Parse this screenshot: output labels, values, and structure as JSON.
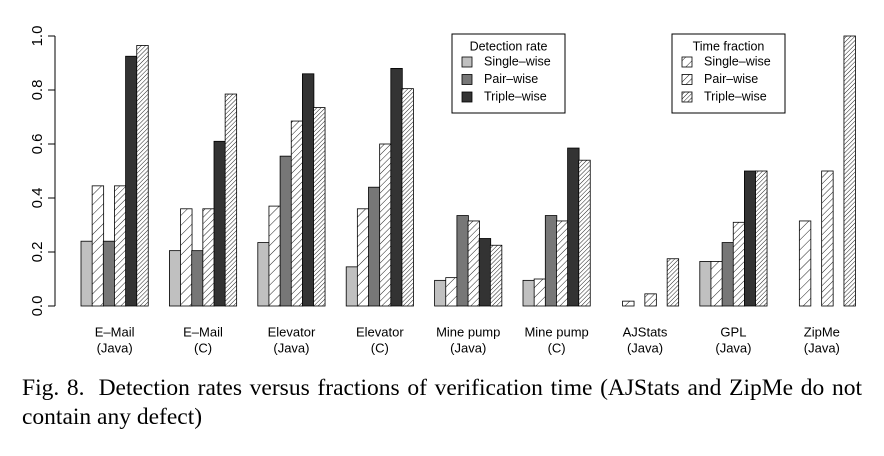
{
  "colors": {
    "single_wise": "#c0c0c0",
    "pair_wise": "#777777",
    "triple_wise": "#333333",
    "hatch_bg": "#ffffff",
    "hatch_line": "#222222",
    "axis": "#000000"
  },
  "chart_data": {
    "type": "bar",
    "categories": [
      [
        "E–Mail",
        "(Java)"
      ],
      [
        "E–Mail",
        "(C)"
      ],
      [
        "Elevator",
        "(Java)"
      ],
      [
        "Elevator",
        "(C)"
      ],
      [
        "Mine pump",
        "(Java)"
      ],
      [
        "Mine pump",
        "(C)"
      ],
      [
        "AJStats",
        "(Java)"
      ],
      [
        "GPL",
        "(Java)"
      ],
      [
        "ZipMe",
        "(Java)"
      ]
    ],
    "bar_order": [
      "detection_single",
      "time_single",
      "detection_pair",
      "time_pair",
      "detection_triple",
      "time_triple"
    ],
    "series": [
      {
        "key": "detection_single",
        "name": "Single–wise",
        "group": "Detection rate",
        "style": "solid",
        "values": [
          0.24,
          0.205,
          0.235,
          0.145,
          0.095,
          0.095,
          0.0,
          0.165,
          0.0
        ]
      },
      {
        "key": "time_single",
        "name": "Single–wise",
        "group": "Time fraction",
        "style": "hatch-sparse",
        "values": [
          0.445,
          0.36,
          0.37,
          0.36,
          0.105,
          0.1,
          0.018,
          0.165,
          0.315
        ]
      },
      {
        "key": "detection_pair",
        "name": "Pair–wise",
        "group": "Detection rate",
        "style": "solid",
        "values": [
          0.24,
          0.205,
          0.555,
          0.44,
          0.335,
          0.335,
          0.0,
          0.235,
          0.0
        ]
      },
      {
        "key": "time_pair",
        "name": "Pair–wise",
        "group": "Time fraction",
        "style": "hatch-medium",
        "values": [
          0.445,
          0.36,
          0.685,
          0.6,
          0.315,
          0.315,
          0.045,
          0.31,
          0.5
        ]
      },
      {
        "key": "detection_triple",
        "name": "Triple–wise",
        "group": "Detection rate",
        "style": "solid",
        "values": [
          0.925,
          0.61,
          0.86,
          0.88,
          0.25,
          0.585,
          0.0,
          0.5,
          0.0
        ]
      },
      {
        "key": "time_triple",
        "name": "Triple–wise",
        "group": "Time fraction",
        "style": "hatch-dense",
        "values": [
          0.965,
          0.785,
          0.735,
          0.805,
          0.225,
          0.54,
          0.175,
          0.5,
          1.0
        ]
      }
    ],
    "ylim": [
      0,
      1.0
    ],
    "yticks": [
      "0.0",
      "0.2",
      "0.4",
      "0.6",
      "0.8",
      "1.0"
    ],
    "legends": [
      {
        "title": "Detection rate",
        "entries": [
          "Single–wise",
          "Pair–wise",
          "Triple–wise"
        ],
        "series_keys": [
          "detection_single",
          "detection_pair",
          "detection_triple"
        ]
      },
      {
        "title": "Time fraction",
        "entries": [
          "Single–wise",
          "Pair–wise",
          "Triple–wise"
        ],
        "series_keys": [
          "time_single",
          "time_pair",
          "time_triple"
        ]
      }
    ],
    "grid": false,
    "xlabel": "",
    "ylabel": ""
  },
  "caption": {
    "label": "Fig. 8.",
    "text": "Detection rates versus fractions of verification time (AJStats and ZipMe do not contain any defect)"
  }
}
